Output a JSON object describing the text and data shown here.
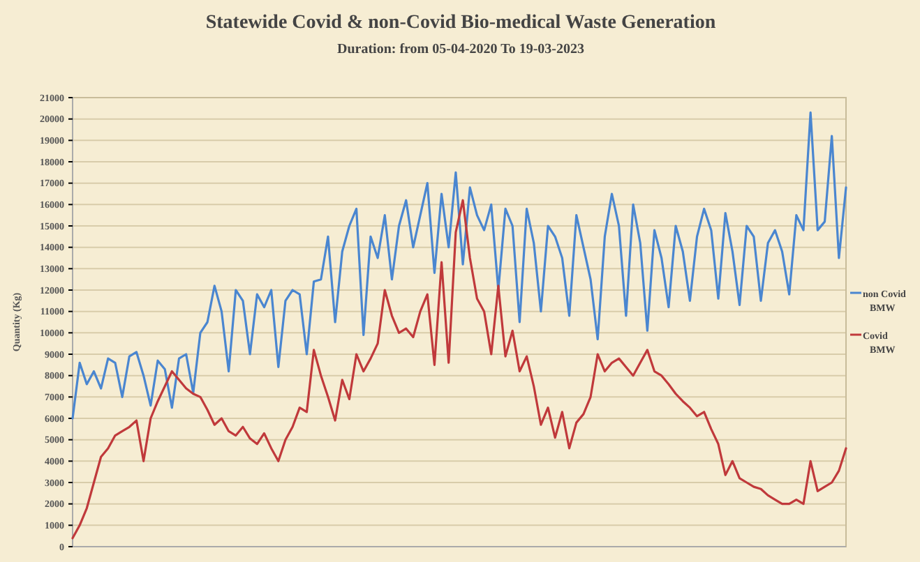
{
  "chart_data": {
    "type": "line",
    "title": "Statewide Covid & non-Covid Bio-medical Waste Generation",
    "subtitle": "Duration: from 05-04-2020 To 19-03-2023",
    "ylabel": "Quantity (Kg)",
    "categories": [
      null,
      null,
      null,
      null,
      null,
      null,
      null,
      null,
      null,
      null,
      null,
      null,
      null,
      null,
      null,
      null,
      null,
      null,
      null,
      null,
      null,
      null,
      null,
      null,
      null,
      null,
      null,
      null,
      null,
      null,
      null,
      null,
      null,
      null,
      null,
      null,
      null,
      null,
      null,
      null,
      null,
      null,
      null,
      null,
      null,
      null,
      null,
      null,
      null,
      null,
      null,
      null,
      null,
      null,
      null,
      null,
      null,
      null,
      null,
      null,
      null,
      null,
      null,
      null,
      null,
      null,
      null,
      null,
      null,
      null,
      null,
      null,
      null,
      null,
      null,
      null,
      null,
      null,
      null,
      null,
      null,
      null,
      null,
      null,
      null,
      null,
      null,
      null,
      null,
      null,
      null,
      null,
      null,
      null,
      null,
      null,
      null,
      null,
      null,
      null,
      null,
      null,
      null,
      null,
      null,
      null,
      null,
      null,
      null,
      null
    ],
    "series": [
      {
        "name": "non Covid BMW",
        "color": "#4a86d0",
        "values": [
          6000,
          8600,
          7600,
          8200,
          7400,
          8800,
          8600,
          7000,
          8900,
          9100,
          8000,
          6600,
          8700,
          8300,
          6500,
          8800,
          9000,
          7200,
          10000,
          10500,
          12200,
          11000,
          8200,
          12000,
          11500,
          9000,
          11800,
          11200,
          12000,
          8400,
          11500,
          12000,
          11800,
          9000,
          12400,
          12500,
          14500,
          10500,
          13800,
          15000,
          15800,
          9900,
          14500,
          13500,
          15500,
          12500,
          15000,
          16200,
          14000,
          15500,
          17000,
          12800,
          16500,
          14000,
          17500,
          13200,
          16800,
          15500,
          14800,
          16000,
          12000,
          15800,
          15000,
          10500,
          15800,
          14200,
          11000,
          15000,
          14500,
          13500,
          10800,
          15500,
          14000,
          12500,
          9700,
          14500,
          16500,
          15000,
          10800,
          16000,
          14200,
          10100,
          14800,
          13500,
          11200,
          15000,
          13800,
          11500,
          14500,
          15800,
          14800,
          11600,
          15600,
          13800,
          11300,
          15000,
          14500,
          11500,
          14200,
          14800,
          13800,
          11800,
          15500,
          14800,
          20300,
          14800,
          15200,
          19200,
          13500,
          16800
        ]
      },
      {
        "name": "Covid BMW",
        "color": "#c0393b",
        "values": [
          400,
          1000,
          1800,
          3000,
          4200,
          4600,
          5200,
          5400,
          5600,
          5900,
          4000,
          6000,
          6800,
          7500,
          8200,
          7800,
          7400,
          7150,
          7000,
          6400,
          5700,
          6000,
          5400,
          5200,
          5600,
          5060,
          4800,
          5300,
          4600,
          4000,
          5000,
          5600,
          6500,
          6300,
          9200,
          8000,
          7000,
          5900,
          7800,
          6900,
          9000,
          8200,
          8800,
          9500,
          12000,
          10800,
          10000,
          10200,
          9800,
          11000,
          11800,
          8500,
          13300,
          8600,
          14700,
          16200,
          13500,
          11600,
          11000,
          9000,
          12200,
          8900,
          10100,
          8200,
          8900,
          7500,
          5700,
          6500,
          5100,
          6300,
          4600,
          5800,
          6200,
          7000,
          9000,
          8200,
          8600,
          8800,
          8400,
          8000,
          8600,
          9200,
          8200,
          8000,
          7600,
          7150,
          6800,
          6500,
          6100,
          6300,
          5500,
          4800,
          3350,
          4000,
          3200,
          3000,
          2800,
          2700,
          2400,
          2200,
          2000,
          2000,
          2200,
          2000,
          4000,
          2600,
          2800,
          3000,
          3550,
          4600
        ]
      }
    ],
    "ylim": [
      0,
      21000
    ],
    "yticks": [
      0,
      1000,
      2000,
      3000,
      4000,
      5000,
      6000,
      7000,
      8000,
      9000,
      10000,
      11000,
      12000,
      13000,
      14000,
      15000,
      16000,
      17000,
      18000,
      19000,
      20000,
      21000
    ],
    "grid": "y",
    "legend": "right",
    "marker": "none",
    "line_style": "solid"
  }
}
